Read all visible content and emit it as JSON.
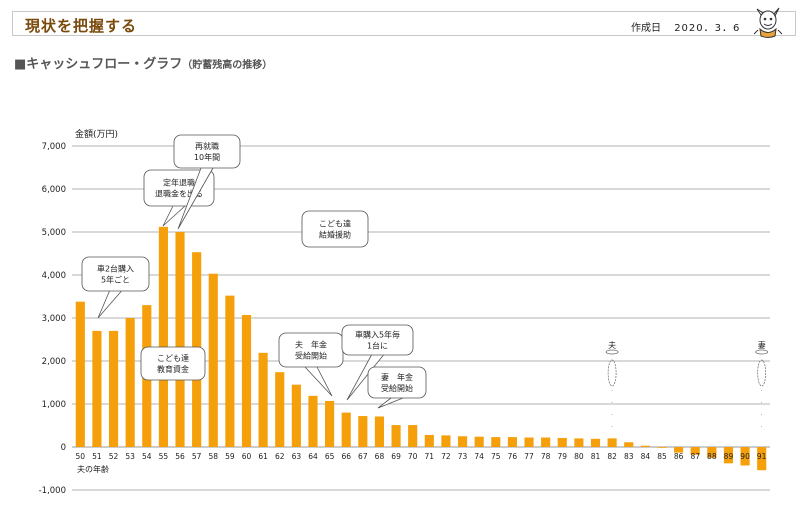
{
  "header": {
    "title": "現状を把握する",
    "created_label": "作成日",
    "created_date": "2020．3．6"
  },
  "section": {
    "title": "■キャッシュフロー・グラフ",
    "subtitle": "（貯蓄残高の推移）"
  },
  "colors": {
    "bar": "#f5a00a",
    "grid": "#9a9a9a",
    "header_text": "#7a4a0c"
  },
  "chart_data": {
    "type": "bar",
    "ylabel": "金額(万円)",
    "xlabel": "夫の年齢",
    "ylim": [
      -1000,
      7000
    ],
    "yticks": [
      -1000,
      0,
      1000,
      2000,
      3000,
      4000,
      5000,
      6000,
      7000
    ],
    "ytick_labels": [
      "-1,000",
      "0",
      "1,000",
      "2,000",
      "3,000",
      "4,000",
      "5,000",
      "6,000",
      "7,000"
    ],
    "grid": true,
    "categories": [
      "50",
      "51",
      "52",
      "53",
      "54",
      "55",
      "56",
      "57",
      "58",
      "59",
      "60",
      "61",
      "62",
      "63",
      "64",
      "65",
      "66",
      "67",
      "68",
      "69",
      "70",
      "71",
      "72",
      "73",
      "74",
      "75",
      "76",
      "77",
      "78",
      "79",
      "80",
      "81",
      "82",
      "83",
      "84",
      "85",
      "86",
      "87",
      "88",
      "89",
      "90",
      "91"
    ],
    "values": [
      3380,
      2700,
      2700,
      3000,
      3300,
      5120,
      5000,
      4530,
      4030,
      3520,
      3070,
      2190,
      1740,
      1450,
      1190,
      1070,
      800,
      720,
      710,
      510,
      510,
      280,
      270,
      250,
      240,
      230,
      230,
      220,
      220,
      210,
      200,
      190,
      200,
      110,
      30,
      -20,
      -130,
      -180,
      -250,
      -380,
      -430,
      -540
    ],
    "annotations": [
      {
        "label": "車2台購入\n5年ごと",
        "category": "51"
      },
      {
        "label": "定年退職\n退職金を出る",
        "category": "55"
      },
      {
        "label": "再就職\n10年間",
        "category": "56"
      },
      {
        "label": "こども達\n結婚援助",
        "category": "66"
      },
      {
        "label": "こども達\n教育資金",
        "category": "55"
      },
      {
        "label": "夫　年金\n受給開始",
        "category": "65"
      },
      {
        "label": "車購入5年毎\n1台に",
        "category": "66"
      },
      {
        "label": "妻　年金\n受給開始",
        "category": "68"
      },
      {
        "label": "夫",
        "category": "82"
      },
      {
        "label": "妻",
        "category": "91"
      }
    ]
  }
}
